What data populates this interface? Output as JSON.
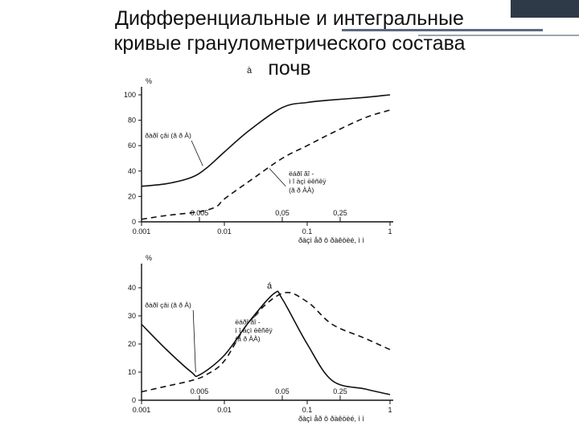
{
  "slide": {
    "title_line1": "Дифференциальные и интегральные",
    "title_line2": "кривые гранулометрического состава",
    "title_line3": "почв",
    "title_mark": "à"
  },
  "chart_data": [
    {
      "type": "line",
      "panel_mark": "",
      "xscale": "log",
      "xlim": [
        0.001,
        1
      ],
      "ylim": [
        0,
        100
      ],
      "yticks": [
        0,
        20,
        40,
        60,
        80,
        100
      ],
      "ylabel": "%",
      "xticks": [
        {
          "v": 0.001,
          "label": "0.001"
        },
        {
          "v": 0.01,
          "label": "0.01"
        },
        {
          "v": 0.1,
          "label": "0.1"
        },
        {
          "v": 1,
          "label": "1"
        }
      ],
      "top_ticks": [
        {
          "v": 0.005,
          "label": "0.005"
        },
        {
          "v": 0.05,
          "label": "0,05"
        },
        {
          "v": 0.25,
          "label": "0,25"
        }
      ],
      "xlabel": "ðàçì åð ô ðàêöèé, ì ì",
      "series": [
        {
          "style": "solid",
          "x": [
            0.001,
            0.002,
            0.004,
            0.006,
            0.01,
            0.02,
            0.05,
            0.1,
            0.2,
            0.5,
            1
          ],
          "y": [
            28,
            30,
            35,
            42,
            55,
            72,
            90,
            94,
            96,
            98,
            100
          ]
        },
        {
          "style": "dashed",
          "x": [
            0.001,
            0.002,
            0.005,
            0.008,
            0.01,
            0.02,
            0.05,
            0.1,
            0.2,
            0.5,
            1
          ],
          "y": [
            2,
            5,
            8,
            12,
            18,
            32,
            50,
            60,
            70,
            82,
            88
          ]
        }
      ],
      "annotations": [
        {
          "text": "ðàðî çâi   (ã ð À)",
          "x": 0.0011,
          "y": 66
        },
        {
          "text": "ëáðî ãî -",
          "x": 0.06,
          "y": 36
        },
        {
          "text": "ì î àçì ëêñêÿ",
          "x": 0.06,
          "y": 30
        },
        {
          "text": "(ã ð ÀÀ)",
          "x": 0.06,
          "y": 23
        }
      ]
    },
    {
      "type": "line",
      "panel_mark": "á",
      "xscale": "log",
      "xlim": [
        0.001,
        1
      ],
      "ylim": [
        0,
        45
      ],
      "yticks": [
        0,
        10,
        20,
        30,
        40
      ],
      "ylabel": "%",
      "xticks": [
        {
          "v": 0.001,
          "label": "0.001"
        },
        {
          "v": 0.01,
          "label": "0.01"
        },
        {
          "v": 0.1,
          "label": "0.1"
        },
        {
          "v": 1,
          "label": "1"
        }
      ],
      "top_ticks": [
        {
          "v": 0.005,
          "label": "0.005"
        },
        {
          "v": 0.05,
          "label": "0.05"
        },
        {
          "v": 0.25,
          "label": "0.25"
        }
      ],
      "xlabel": "ðàçì åð ô ðàêöèé, ì ì",
      "series": [
        {
          "style": "solid",
          "x": [
            0.001,
            0.002,
            0.004,
            0.005,
            0.01,
            0.02,
            0.04,
            0.05,
            0.1,
            0.2,
            0.5,
            1
          ],
          "y": [
            27,
            18,
            10,
            9,
            16,
            28,
            38,
            36,
            20,
            7,
            4,
            2
          ]
        },
        {
          "style": "dashed",
          "x": [
            0.001,
            0.002,
            0.004,
            0.006,
            0.01,
            0.02,
            0.05,
            0.1,
            0.2,
            0.5,
            1
          ],
          "y": [
            3,
            5,
            7,
            9,
            14,
            28,
            38,
            35,
            27,
            22,
            18
          ]
        }
      ],
      "annotations": [
        {
          "text": "ðàðî çâi   (ã ð À)",
          "x": 0.0011,
          "y": 33
        },
        {
          "text": "ëáðî ãî -",
          "x": 0.0135,
          "y": 27
        },
        {
          "text": "ì î àçì ëêñêÿ",
          "x": 0.0135,
          "y": 24
        },
        {
          "text": "(ã ð ÀÀ)",
          "x": 0.0135,
          "y": 21
        }
      ]
    }
  ]
}
